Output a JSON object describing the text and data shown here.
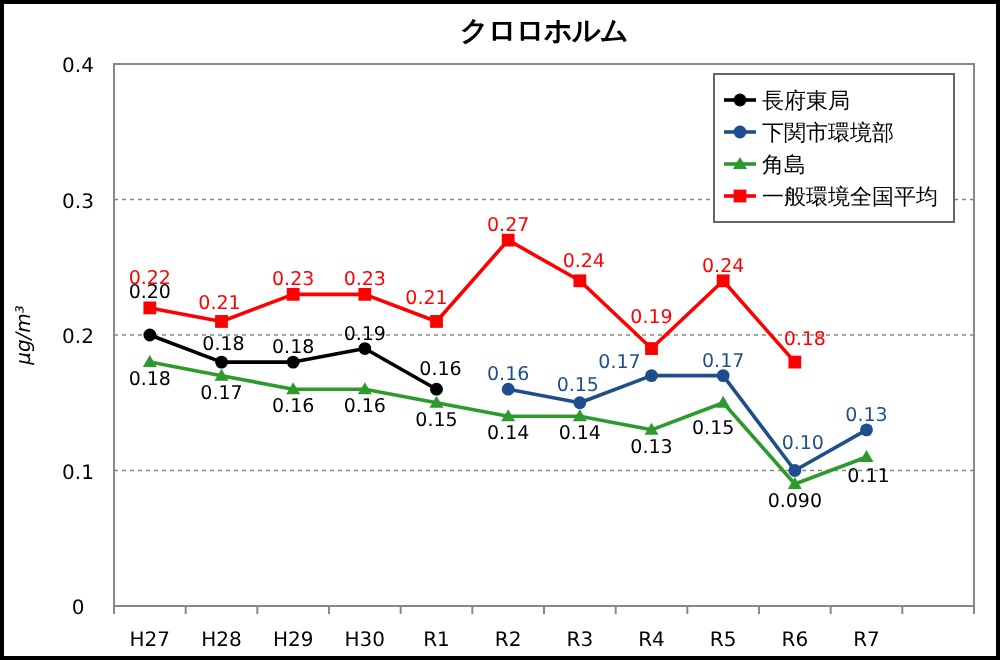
{
  "chart_data": {
    "type": "line",
    "title": "クロロホルム",
    "ylabel": "μg/m³",
    "categories": [
      "H27",
      "H28",
      "H29",
      "H30",
      "R1",
      "R2",
      "R3",
      "R4",
      "R5",
      "R6",
      "R7",
      null
    ],
    "series": [
      {
        "name": "長府東局",
        "color": "#000000",
        "marker": "circle",
        "values": [
          0.2,
          0.18,
          0.18,
          0.19,
          0.16,
          null,
          null,
          null,
          null,
          null,
          null,
          null
        ],
        "value_labels": [
          "0.20",
          "0.18",
          "0.18",
          "0.19",
          "0.16",
          null,
          null,
          null,
          null,
          null,
          null,
          null
        ]
      },
      {
        "name": "下関市環境部",
        "color": "#1f4e8c",
        "marker": "circle",
        "values": [
          null,
          null,
          null,
          null,
          null,
          0.16,
          0.15,
          0.17,
          0.17,
          0.1,
          0.13,
          null
        ],
        "value_labels": [
          null,
          null,
          null,
          null,
          null,
          "0.16",
          "0.15",
          "0.17",
          "0.17",
          "0.10",
          "0.13",
          null
        ]
      },
      {
        "name": "角島",
        "color": "#2e9a2e",
        "marker": "triangle",
        "values": [
          0.18,
          0.17,
          0.16,
          0.16,
          0.15,
          0.14,
          0.14,
          0.13,
          0.15,
          0.09,
          0.11,
          null
        ],
        "value_labels": [
          "0.18",
          "0.17",
          "0.16",
          "0.16",
          "0.15",
          "0.14",
          "0.14",
          "0.13",
          "0.15",
          "0.090",
          "0.11",
          null
        ]
      },
      {
        "name": "一般環境全国平均",
        "color": "#ff0000",
        "marker": "square",
        "values": [
          0.22,
          0.21,
          0.23,
          0.23,
          0.21,
          0.27,
          0.24,
          0.19,
          0.24,
          0.18,
          null,
          null
        ],
        "value_labels": [
          "0.22",
          "0.21",
          "0.23",
          "0.23",
          "0.21",
          "0.27",
          "0.24",
          "0.19",
          "0.24",
          "0.18",
          null,
          null
        ]
      }
    ],
    "ylim": [
      0,
      0.4
    ],
    "yticks": [
      0,
      0.1,
      0.2,
      0.3,
      0.4
    ],
    "grid": "y",
    "legend": "top right"
  }
}
